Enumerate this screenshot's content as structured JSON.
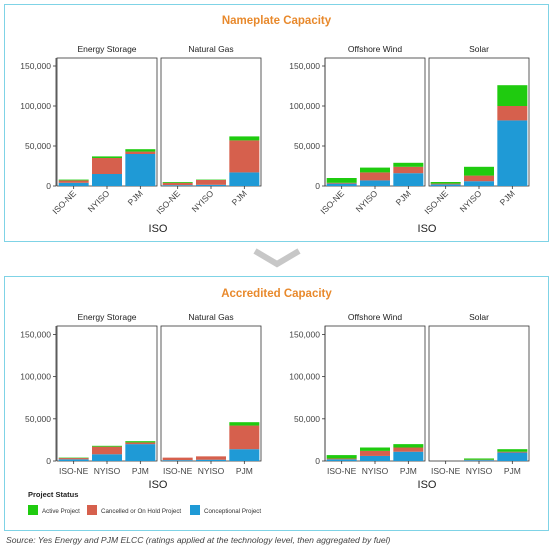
{
  "sections": [
    {
      "title": "Nameplate Capacity"
    },
    {
      "title": "Accredited Capacity"
    }
  ],
  "legend": {
    "title": "Project Status"
  },
  "source": "Source: Yes Energy and PJM ELCC (ratings applied at the technology level, then aggregated by fuel)",
  "colors": {
    "active": "#1fcb0f",
    "cancelled": "#d6604d",
    "conceptional": "#1f9ad6"
  },
  "chart_data": [
    {
      "type": "bar",
      "stacked": true,
      "section": "Nameplate Capacity",
      "xlabel": "ISO",
      "ylabel": "",
      "ylim": [
        0,
        160000
      ],
      "yticks": [
        0,
        50000,
        100000,
        150000
      ],
      "ytick_labels": [
        "0",
        "50,000",
        "100,000",
        "150,000"
      ],
      "categories": [
        "ISO-NE",
        "NYISO",
        "PJM"
      ],
      "facets": [
        {
          "name": "Energy Storage",
          "series": [
            {
              "name": "Conceptional Project",
              "values": [
                4000,
                15000,
                40000
              ]
            },
            {
              "name": "Cancelled or On Hold Project",
              "values": [
                3000,
                20000,
                3000
              ]
            },
            {
              "name": "Active Project",
              "values": [
                1000,
                2000,
                3000
              ]
            }
          ]
        },
        {
          "name": "Natural Gas",
          "series": [
            {
              "name": "Conceptional Project",
              "values": [
                1000,
                1500,
                17000
              ]
            },
            {
              "name": "Cancelled or On Hold Project",
              "values": [
                3000,
                6000,
                40000
              ]
            },
            {
              "name": "Active Project",
              "values": [
                1000,
                500,
                5000
              ]
            }
          ]
        },
        {
          "name": "Offshore Wind",
          "series": [
            {
              "name": "Conceptional Project",
              "values": [
                3000,
                7000,
                16000
              ]
            },
            {
              "name": "Cancelled or On Hold Project",
              "values": [
                1000,
                10000,
                8000
              ]
            },
            {
              "name": "Active Project",
              "values": [
                6000,
                6000,
                5000
              ]
            }
          ]
        },
        {
          "name": "Solar",
          "series": [
            {
              "name": "Conceptional Project",
              "values": [
                2000,
                6000,
                82000
              ]
            },
            {
              "name": "Cancelled or On Hold Project",
              "values": [
                1000,
                7000,
                18000
              ]
            },
            {
              "name": "Active Project",
              "values": [
                2000,
                11000,
                26000
              ]
            }
          ]
        }
      ]
    },
    {
      "type": "bar",
      "stacked": true,
      "section": "Accredited Capacity",
      "xlabel": "ISO",
      "ylabel": "",
      "ylim": [
        0,
        160000
      ],
      "yticks": [
        0,
        50000,
        100000,
        150000
      ],
      "ytick_labels": [
        "0",
        "50,000",
        "100,000",
        "150,000"
      ],
      "categories": [
        "ISO-NE",
        "NYISO",
        "PJM"
      ],
      "facets": [
        {
          "name": "Energy Storage",
          "series": [
            {
              "name": "Conceptional Project",
              "values": [
                2000,
                8000,
                20000
              ]
            },
            {
              "name": "Cancelled or On Hold Project",
              "values": [
                1500,
                9000,
                2000
              ]
            },
            {
              "name": "Active Project",
              "values": [
                500,
                1000,
                1500
              ]
            }
          ]
        },
        {
          "name": "Natural Gas",
          "series": [
            {
              "name": "Conceptional Project",
              "values": [
                1000,
                1500,
                14000
              ]
            },
            {
              "name": "Cancelled or On Hold Project",
              "values": [
                3000,
                4000,
                28000
              ]
            },
            {
              "name": "Active Project",
              "values": [
                0,
                0,
                4000
              ]
            }
          ]
        },
        {
          "name": "Offshore Wind",
          "series": [
            {
              "name": "Conceptional Project",
              "values": [
                2000,
                6000,
                11000
              ]
            },
            {
              "name": "Cancelled or On Hold Project",
              "values": [
                1000,
                6000,
                5000
              ]
            },
            {
              "name": "Active Project",
              "values": [
                4000,
                4000,
                4000
              ]
            }
          ]
        },
        {
          "name": "Solar",
          "series": [
            {
              "name": "Conceptional Project",
              "values": [
                0,
                1000,
                10000
              ]
            },
            {
              "name": "Cancelled or On Hold Project",
              "values": [
                0,
                500,
                1000
              ]
            },
            {
              "name": "Active Project",
              "values": [
                0,
                1500,
                3000
              ]
            }
          ]
        }
      ]
    }
  ],
  "legend_entries": [
    "Active Project",
    "Cancelled or On Hold Project",
    "Conceptional Project"
  ]
}
